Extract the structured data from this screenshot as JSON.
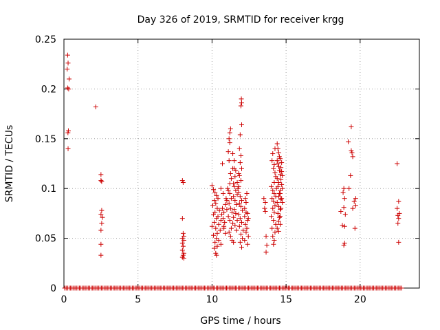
{
  "chart_data": {
    "type": "scatter",
    "title": "Day 326 of 2019, SRMTID for receiver krgg",
    "xlabel": "GPS time / hours",
    "ylabel": "SRMTID / TECUs",
    "xlim": [
      0,
      24
    ],
    "ylim": [
      0,
      0.25
    ],
    "xticks": [
      0,
      5,
      10,
      15,
      20
    ],
    "xtick_labels": [
      "0",
      "5",
      "10",
      "15",
      "20"
    ],
    "yticks": [
      0,
      0.05,
      0.1,
      0.15,
      0.2,
      0.25
    ],
    "ytick_labels": [
      "0",
      "0.05",
      "0.1",
      "0.15",
      "0.2",
      "0.25"
    ],
    "grid": true,
    "marker": "+",
    "colors": {
      "points": "#cc0000",
      "grid": "#a0a0a0",
      "axis": "#000000"
    },
    "series": [
      {
        "name": "SRMTID",
        "points": [
          [
            0.25,
            0.234
          ],
          [
            0.28,
            0.226
          ],
          [
            0.22,
            0.22
          ],
          [
            0.35,
            0.21
          ],
          [
            0.25,
            0.201
          ],
          [
            0.32,
            0.2
          ],
          [
            0.3,
            0.158
          ],
          [
            0.27,
            0.156
          ],
          [
            0.28,
            0.14
          ],
          [
            2.15,
            0.182
          ],
          [
            2.5,
            0.114
          ],
          [
            2.5,
            0.108
          ],
          [
            2.55,
            0.107
          ],
          [
            2.55,
            0.078
          ],
          [
            2.5,
            0.074
          ],
          [
            2.6,
            0.071
          ],
          [
            2.55,
            0.065
          ],
          [
            2.5,
            0.058
          ],
          [
            2.5,
            0.044
          ],
          [
            2.5,
            0.033
          ],
          [
            8.0,
            0.108
          ],
          [
            8.05,
            0.106
          ],
          [
            8.0,
            0.07
          ],
          [
            8.05,
            0.055
          ],
          [
            8.1,
            0.052
          ],
          [
            8.0,
            0.05
          ],
          [
            8.1,
            0.048
          ],
          [
            8.0,
            0.045
          ],
          [
            8.05,
            0.042
          ],
          [
            8.0,
            0.038
          ],
          [
            8.1,
            0.035
          ],
          [
            8.05,
            0.033
          ],
          [
            8.0,
            0.031
          ],
          [
            8.1,
            0.03
          ],
          [
            10.0,
            0.103
          ],
          [
            10.1,
            0.099
          ],
          [
            10.2,
            0.096
          ],
          [
            10.3,
            0.093
          ],
          [
            10.4,
            0.09
          ],
          [
            10.15,
            0.088
          ],
          [
            10.25,
            0.085
          ],
          [
            10.05,
            0.083
          ],
          [
            10.35,
            0.08
          ],
          [
            10.5,
            0.078
          ],
          [
            10.2,
            0.076
          ],
          [
            10.1,
            0.074
          ],
          [
            10.4,
            0.072
          ],
          [
            10.3,
            0.07
          ],
          [
            10.6,
            0.068
          ],
          [
            10.15,
            0.066
          ],
          [
            10.45,
            0.064
          ],
          [
            10.0,
            0.062
          ],
          [
            10.25,
            0.06
          ],
          [
            10.55,
            0.058
          ],
          [
            10.35,
            0.055
          ],
          [
            10.1,
            0.053
          ],
          [
            10.3,
            0.05
          ],
          [
            10.45,
            0.048
          ],
          [
            10.2,
            0.046
          ],
          [
            10.6,
            0.044
          ],
          [
            10.35,
            0.042
          ],
          [
            10.15,
            0.04
          ],
          [
            10.25,
            0.035
          ],
          [
            10.3,
            0.033
          ],
          [
            10.7,
            0.08
          ],
          [
            10.8,
            0.076
          ],
          [
            10.9,
            0.084
          ],
          [
            10.75,
            0.07
          ],
          [
            10.85,
            0.066
          ],
          [
            10.95,
            0.09
          ],
          [
            10.8,
            0.06
          ],
          [
            10.9,
            0.055
          ],
          [
            10.75,
            0.095
          ],
          [
            11.0,
            0.088
          ],
          [
            10.65,
            0.074
          ],
          [
            10.6,
            0.1
          ],
          [
            10.7,
            0.125
          ],
          [
            11.0,
            0.079
          ],
          [
            10.8,
            0.062
          ],
          [
            11.1,
            0.098
          ],
          [
            11.2,
            0.095
          ],
          [
            11.3,
            0.09
          ],
          [
            11.15,
            0.085
          ],
          [
            11.25,
            0.08
          ],
          [
            11.35,
            0.076
          ],
          [
            11.1,
            0.072
          ],
          [
            11.2,
            0.068
          ],
          [
            11.4,
            0.065
          ],
          [
            11.3,
            0.06
          ],
          [
            11.15,
            0.056
          ],
          [
            11.25,
            0.052
          ],
          [
            11.35,
            0.048
          ],
          [
            11.45,
            0.046
          ],
          [
            11.2,
            0.105
          ],
          [
            11.3,
            0.11
          ],
          [
            11.25,
            0.115
          ],
          [
            11.4,
            0.12
          ],
          [
            11.15,
            0.128
          ],
          [
            11.05,
            0.1
          ],
          [
            11.1,
            0.137
          ],
          [
            11.2,
            0.146
          ],
          [
            11.15,
            0.15
          ],
          [
            11.2,
            0.156
          ],
          [
            11.25,
            0.16
          ],
          [
            11.5,
            0.102
          ],
          [
            11.6,
            0.098
          ],
          [
            11.45,
            0.092
          ],
          [
            11.55,
            0.088
          ],
          [
            11.65,
            0.084
          ],
          [
            11.5,
            0.079
          ],
          [
            11.6,
            0.075
          ],
          [
            11.45,
            0.071
          ],
          [
            11.7,
            0.068
          ],
          [
            11.55,
            0.063
          ],
          [
            11.65,
            0.058
          ],
          [
            11.5,
            0.12
          ],
          [
            11.6,
            0.118
          ],
          [
            11.55,
            0.112
          ],
          [
            11.7,
            0.106
          ],
          [
            11.4,
            0.135
          ],
          [
            11.5,
            0.128
          ],
          [
            11.45,
            0.105
          ],
          [
            11.8,
            0.096
          ],
          [
            11.9,
            0.092
          ],
          [
            12.0,
            0.088
          ],
          [
            11.85,
            0.085
          ],
          [
            11.95,
            0.082
          ],
          [
            12.05,
            0.078
          ],
          [
            11.8,
            0.074
          ],
          [
            11.9,
            0.07
          ],
          [
            12.0,
            0.066
          ],
          [
            11.85,
            0.062
          ],
          [
            12.1,
            0.058
          ],
          [
            11.95,
            0.054
          ],
          [
            12.05,
            0.05
          ],
          [
            11.9,
            0.046
          ],
          [
            12.0,
            0.041
          ],
          [
            11.8,
            0.102
          ],
          [
            11.95,
            0.108
          ],
          [
            11.85,
            0.113
          ],
          [
            12.0,
            0.12
          ],
          [
            11.9,
            0.126
          ],
          [
            11.95,
            0.133
          ],
          [
            11.85,
            0.14
          ],
          [
            11.9,
            0.154
          ],
          [
            12.0,
            0.164
          ],
          [
            11.95,
            0.183
          ],
          [
            12.0,
            0.186
          ],
          [
            11.98,
            0.19
          ],
          [
            11.8,
            0.115
          ],
          [
            11.75,
            0.1
          ],
          [
            11.7,
            0.094
          ],
          [
            12.2,
            0.08
          ],
          [
            12.3,
            0.076
          ],
          [
            12.2,
            0.072
          ],
          [
            12.4,
            0.068
          ],
          [
            12.25,
            0.064
          ],
          [
            12.35,
            0.06
          ],
          [
            12.3,
            0.056
          ],
          [
            12.45,
            0.052
          ],
          [
            12.2,
            0.048
          ],
          [
            12.4,
            0.044
          ],
          [
            12.3,
            0.086
          ],
          [
            12.25,
            0.09
          ],
          [
            12.35,
            0.095
          ],
          [
            12.4,
            0.075
          ],
          [
            12.45,
            0.07
          ],
          [
            13.5,
            0.09
          ],
          [
            13.6,
            0.086
          ],
          [
            13.55,
            0.08
          ],
          [
            13.6,
            0.077
          ],
          [
            13.65,
            0.052
          ],
          [
            13.7,
            0.043
          ],
          [
            13.65,
            0.036
          ],
          [
            14.0,
            0.102
          ],
          [
            14.1,
            0.098
          ],
          [
            14.2,
            0.095
          ],
          [
            14.05,
            0.09
          ],
          [
            14.15,
            0.087
          ],
          [
            14.25,
            0.083
          ],
          [
            14.1,
            0.08
          ],
          [
            14.2,
            0.076
          ],
          [
            14.0,
            0.072
          ],
          [
            14.15,
            0.068
          ],
          [
            14.3,
            0.064
          ],
          [
            14.05,
            0.06
          ],
          [
            14.25,
            0.056
          ],
          [
            14.1,
            0.052
          ],
          [
            14.2,
            0.048
          ],
          [
            14.15,
            0.044
          ],
          [
            14.05,
            0.128
          ],
          [
            14.15,
            0.12
          ],
          [
            14.3,
            0.112
          ],
          [
            14.2,
            0.106
          ],
          [
            14.25,
            0.14
          ],
          [
            14.1,
            0.135
          ],
          [
            14.2,
            0.124
          ],
          [
            14.25,
            0.116
          ],
          [
            14.35,
            0.1
          ],
          [
            14.3,
            0.092
          ],
          [
            14.4,
            0.128
          ],
          [
            14.45,
            0.125
          ],
          [
            14.5,
            0.122
          ],
          [
            14.55,
            0.118
          ],
          [
            14.6,
            0.114
          ],
          [
            14.4,
            0.11
          ],
          [
            14.5,
            0.106
          ],
          [
            14.45,
            0.102
          ],
          [
            14.6,
            0.098
          ],
          [
            14.55,
            0.095
          ],
          [
            14.5,
            0.092
          ],
          [
            14.65,
            0.089
          ],
          [
            14.4,
            0.086
          ],
          [
            14.5,
            0.082
          ],
          [
            14.6,
            0.079
          ],
          [
            14.45,
            0.075
          ],
          [
            14.55,
            0.071
          ],
          [
            14.5,
            0.067
          ],
          [
            14.6,
            0.064
          ],
          [
            14.4,
            0.06
          ],
          [
            14.5,
            0.057
          ],
          [
            14.4,
            0.145
          ],
          [
            14.45,
            0.14
          ],
          [
            14.5,
            0.136
          ],
          [
            14.55,
            0.132
          ],
          [
            14.6,
            0.13
          ],
          [
            14.7,
            0.126
          ],
          [
            14.65,
            0.121
          ],
          [
            14.7,
            0.117
          ],
          [
            14.75,
            0.113
          ],
          [
            14.65,
            0.109
          ],
          [
            14.7,
            0.104
          ],
          [
            14.75,
            0.1
          ],
          [
            14.6,
            0.095
          ],
          [
            14.7,
            0.09
          ],
          [
            14.75,
            0.086
          ],
          [
            14.65,
            0.08
          ],
          [
            14.6,
            0.072
          ],
          [
            18.7,
            0.077
          ],
          [
            18.8,
            0.063
          ],
          [
            18.9,
            0.1
          ],
          [
            18.85,
            0.096
          ],
          [
            18.95,
            0.09
          ],
          [
            18.9,
            0.081
          ],
          [
            19.0,
            0.074
          ],
          [
            18.95,
            0.062
          ],
          [
            18.95,
            0.045
          ],
          [
            18.9,
            0.043
          ],
          [
            19.2,
            0.147
          ],
          [
            19.4,
            0.162
          ],
          [
            19.4,
            0.138
          ],
          [
            19.45,
            0.136
          ],
          [
            19.5,
            0.132
          ],
          [
            19.35,
            0.113
          ],
          [
            19.25,
            0.1
          ],
          [
            19.5,
            0.08
          ],
          [
            19.6,
            0.087
          ],
          [
            19.7,
            0.083
          ],
          [
            19.7,
            0.09
          ],
          [
            19.65,
            0.06
          ],
          [
            22.5,
            0.125
          ],
          [
            22.6,
            0.087
          ],
          [
            22.5,
            0.08
          ],
          [
            22.65,
            0.075
          ],
          [
            22.55,
            0.073
          ],
          [
            22.6,
            0.07
          ],
          [
            22.55,
            0.065
          ],
          [
            22.6,
            0.046
          ]
        ]
      }
    ],
    "zero_band": {
      "y": 0,
      "x_range": [
        0.05,
        22.8
      ],
      "count": 230
    }
  }
}
